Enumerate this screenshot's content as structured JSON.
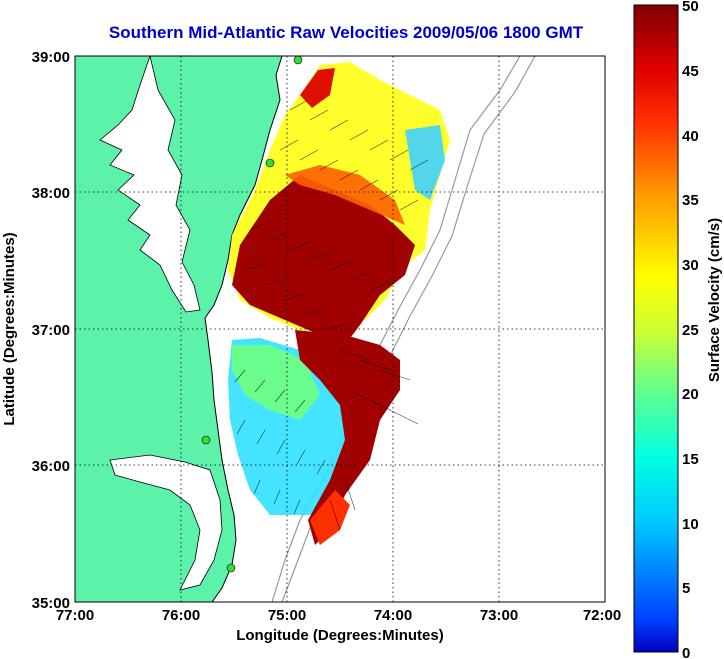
{
  "title": "Southern Mid-Atlantic Raw Velocities 2009/05/06 1800 GMT",
  "xlabel": "Longitude (Degrees:Minutes)",
  "ylabel": "Latitude (Degrees:Minutes)",
  "x_ticks": [
    "77:00",
    "76:00",
    "75:00",
    "74:00",
    "73:00",
    "72:00"
  ],
  "y_ticks": [
    "39:00",
    "38:00",
    "37:00",
    "36:00",
    "35:00"
  ],
  "colorbar": {
    "label": "Surface Velocity (cm/s)",
    "ticks": [
      "0",
      "5",
      "10",
      "15",
      "20",
      "25",
      "30",
      "35",
      "40",
      "45",
      "50"
    ],
    "range": [
      0,
      50
    ],
    "colormap": "jet"
  },
  "map": {
    "lon_range": [
      -77,
      -72
    ],
    "lat_range": [
      35,
      39
    ],
    "grid": true,
    "land_color": "#5cf2aa",
    "water_color": "#ffffff",
    "site_marker_color": "#33dd33"
  }
}
